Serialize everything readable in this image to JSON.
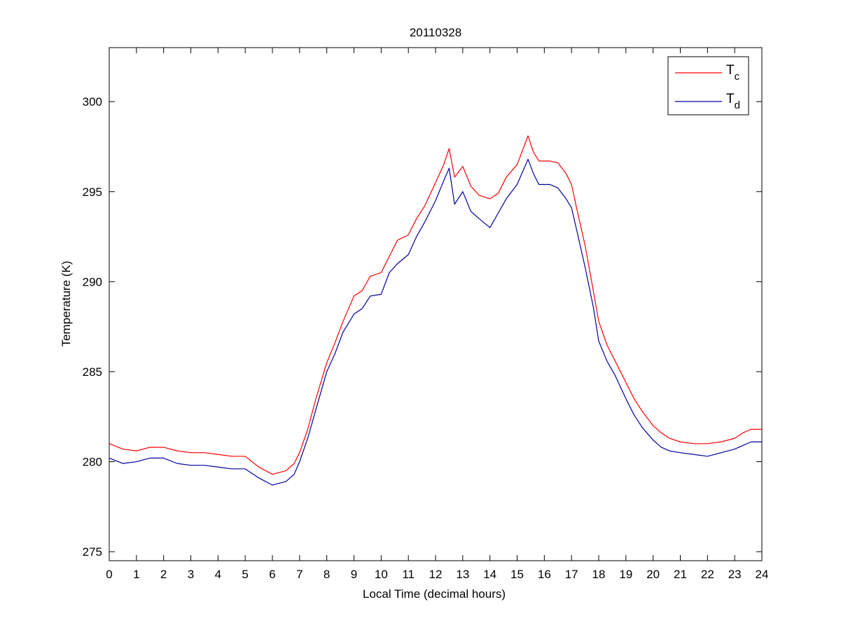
{
  "chart_data": {
    "type": "line",
    "title": "20110328",
    "xlabel": "Local Time (decimal hours)",
    "ylabel": "Temperature (K)",
    "xlim": [
      0,
      24
    ],
    "ylim": [
      274.5,
      303
    ],
    "x_ticks": [
      0,
      1,
      2,
      3,
      4,
      5,
      6,
      7,
      8,
      9,
      10,
      11,
      12,
      13,
      14,
      15,
      16,
      17,
      18,
      19,
      20,
      21,
      22,
      23,
      24
    ],
    "y_ticks": [
      275,
      280,
      285,
      290,
      295,
      300
    ],
    "grid": false,
    "legend_position": "top-right",
    "series": [
      {
        "name": "T",
        "subscript": "c",
        "color": "#ff0000",
        "x": [
          0,
          0.5,
          1,
          1.5,
          2,
          2.5,
          3,
          3.5,
          4,
          4.5,
          5,
          5.5,
          6,
          6.5,
          6.8,
          7,
          7.3,
          7.6,
          8,
          8.3,
          8.6,
          9,
          9.3,
          9.6,
          10,
          10.3,
          10.6,
          11,
          11.3,
          11.6,
          12,
          12.3,
          12.5,
          12.7,
          13,
          13.3,
          13.6,
          14,
          14.3,
          14.6,
          15,
          15.2,
          15.4,
          15.6,
          15.8,
          16,
          16.2,
          16.5,
          16.8,
          17,
          17.2,
          17.5,
          17.8,
          18,
          18.3,
          18.6,
          19,
          19.3,
          19.6,
          20,
          20.3,
          20.6,
          21,
          21.5,
          22,
          22.5,
          23,
          23.3,
          23.6,
          24
        ],
        "y": [
          281.0,
          280.7,
          280.6,
          280.8,
          280.8,
          280.6,
          280.5,
          280.5,
          280.4,
          280.3,
          280.3,
          279.7,
          279.3,
          279.5,
          279.9,
          280.5,
          281.8,
          283.5,
          285.5,
          286.6,
          287.8,
          289.2,
          289.5,
          290.3,
          290.5,
          291.4,
          292.3,
          292.6,
          293.5,
          294.2,
          295.5,
          296.5,
          297.4,
          295.8,
          296.4,
          295.3,
          294.8,
          294.6,
          294.9,
          295.8,
          296.5,
          297.3,
          298.1,
          297.2,
          296.7,
          296.7,
          296.7,
          296.6,
          296.0,
          295.4,
          294.0,
          292.0,
          289.5,
          287.8,
          286.5,
          285.6,
          284.4,
          283.5,
          282.8,
          282.0,
          281.6,
          281.3,
          281.1,
          281.0,
          281.0,
          281.1,
          281.3,
          281.6,
          281.8,
          281.8
        ]
      },
      {
        "name": "T",
        "subscript": "d",
        "color": "#0000a0",
        "x": [
          0,
          0.5,
          1,
          1.5,
          2,
          2.5,
          3,
          3.5,
          4,
          4.5,
          5,
          5.5,
          6,
          6.5,
          6.8,
          7,
          7.3,
          7.6,
          8,
          8.3,
          8.6,
          9,
          9.3,
          9.6,
          10,
          10.3,
          10.6,
          11,
          11.3,
          11.6,
          12,
          12.3,
          12.5,
          12.7,
          13,
          13.3,
          13.6,
          14,
          14.3,
          14.6,
          15,
          15.2,
          15.4,
          15.6,
          15.8,
          16,
          16.2,
          16.5,
          16.8,
          17,
          17.2,
          17.5,
          17.8,
          18,
          18.3,
          18.6,
          19,
          19.3,
          19.6,
          20,
          20.3,
          20.6,
          21,
          21.5,
          22,
          22.5,
          23,
          23.3,
          23.6,
          24
        ],
        "y": [
          280.2,
          279.9,
          280.0,
          280.2,
          280.2,
          279.9,
          279.8,
          279.8,
          279.7,
          279.6,
          279.6,
          279.1,
          278.7,
          278.9,
          279.3,
          280.0,
          281.3,
          282.9,
          285.0,
          286.0,
          287.2,
          288.2,
          288.5,
          289.2,
          289.3,
          290.5,
          291.0,
          291.5,
          292.5,
          293.3,
          294.5,
          295.6,
          296.3,
          294.3,
          295.0,
          293.9,
          293.5,
          293.0,
          293.8,
          294.6,
          295.4,
          296.1,
          296.8,
          296.0,
          295.4,
          295.4,
          295.4,
          295.2,
          294.6,
          294.1,
          292.8,
          290.8,
          288.6,
          286.7,
          285.6,
          284.8,
          283.5,
          282.6,
          281.9,
          281.2,
          280.8,
          280.6,
          280.5,
          280.4,
          280.3,
          280.5,
          280.7,
          280.9,
          281.1,
          281.1
        ]
      }
    ]
  }
}
